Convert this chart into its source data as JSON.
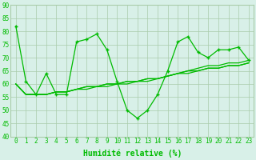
{
  "x": [
    0,
    1,
    2,
    3,
    4,
    5,
    6,
    7,
    8,
    9,
    10,
    11,
    12,
    13,
    14,
    15,
    16,
    17,
    18,
    19,
    20,
    21,
    22,
    23
  ],
  "line1": [
    82,
    61,
    56,
    64,
    56,
    56,
    76,
    77,
    79,
    73,
    61,
    50,
    47,
    50,
    56,
    65,
    76,
    78,
    72,
    70,
    73,
    73,
    74,
    69
  ],
  "line2": [
    60,
    56,
    56,
    56,
    57,
    57,
    58,
    58,
    59,
    59,
    60,
    60,
    61,
    61,
    62,
    63,
    64,
    65,
    66,
    67,
    67,
    68,
    68,
    69
  ],
  "line3": [
    60,
    56,
    56,
    56,
    57,
    57,
    58,
    59,
    59,
    60,
    60,
    61,
    61,
    62,
    62,
    63,
    64,
    65,
    65,
    66,
    66,
    67,
    67,
    68
  ],
  "line4": [
    60,
    56,
    56,
    56,
    57,
    57,
    58,
    59,
    59,
    60,
    60,
    61,
    61,
    62,
    62,
    63,
    64,
    64,
    65,
    66,
    66,
    67,
    67,
    68
  ],
  "line_color": "#00bb00",
  "bg_color": "#d8f0e8",
  "grid_color": "#aaccaa",
  "xlabel": "Humidité relative (%)",
  "ylim": [
    40,
    90
  ],
  "yticks": [
    40,
    45,
    50,
    55,
    60,
    65,
    70,
    75,
    80,
    85,
    90
  ],
  "xticks": [
    0,
    1,
    2,
    3,
    4,
    5,
    6,
    7,
    8,
    9,
    10,
    11,
    12,
    13,
    14,
    15,
    16,
    17,
    18,
    19,
    20,
    21,
    22,
    23
  ],
  "xlabel_fontsize": 7,
  "tick_fontsize": 5.5
}
